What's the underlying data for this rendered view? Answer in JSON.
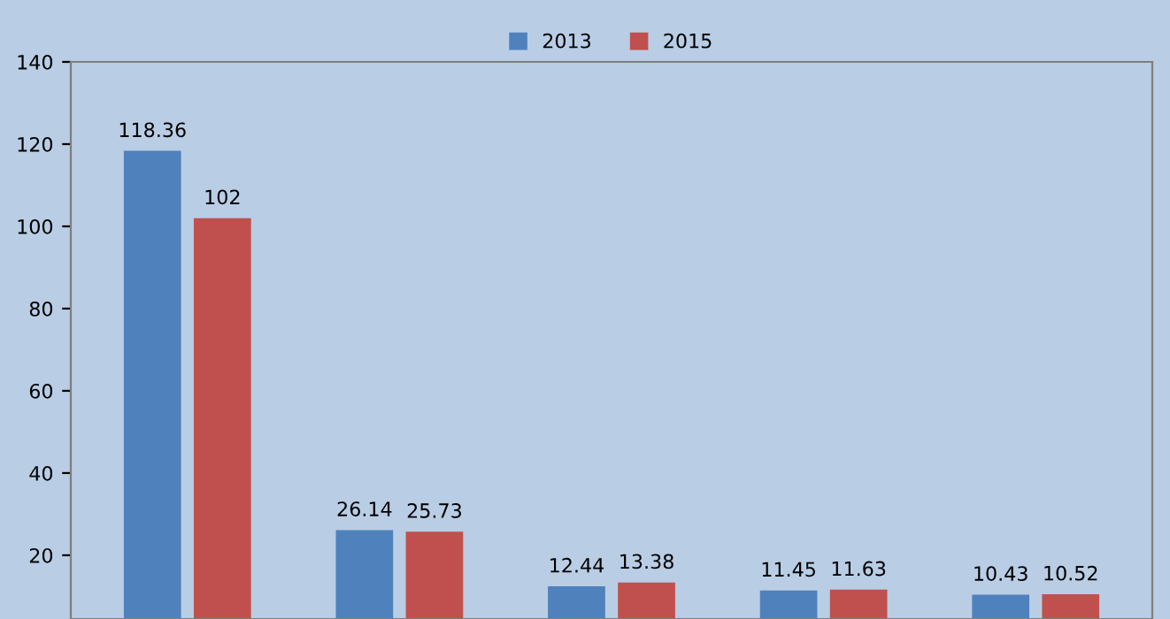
{
  "chart_data": {
    "type": "bar",
    "categories": [
      null,
      null,
      null,
      null,
      null
    ],
    "series": [
      {
        "name": "2013",
        "color": "#4f81bd",
        "values": [
          118.36,
          26.14,
          12.44,
          11.45,
          10.43
        ]
      },
      {
        "name": "2015",
        "color": "#c0504d",
        "values": [
          102,
          25.73,
          13.38,
          11.63,
          10.52
        ]
      }
    ],
    "ylim": [
      4.5,
      140
    ],
    "yticks": [
      20,
      40,
      60,
      80,
      100,
      120,
      140
    ],
    "data_labels": true,
    "legend": "top",
    "grid": false
  }
}
